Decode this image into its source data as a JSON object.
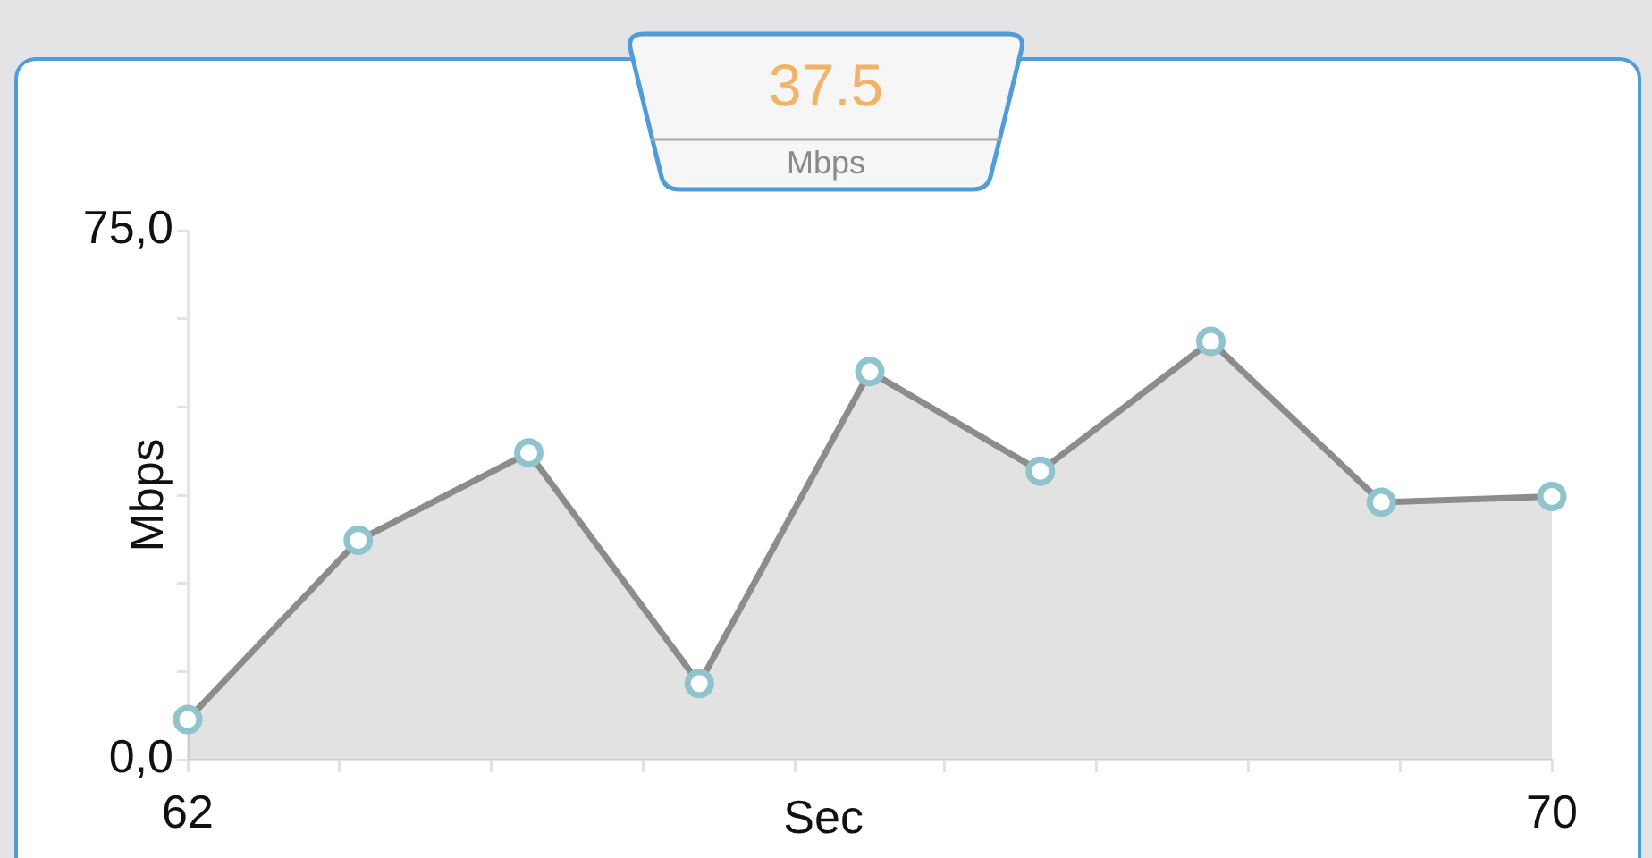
{
  "chart_data": {
    "type": "area",
    "title": "37.5",
    "subtitle": "Mbps",
    "xlabel": "Sec",
    "ylabel": "Mbps",
    "x": [
      62,
      63,
      64,
      65,
      66,
      67,
      68,
      69,
      70
    ],
    "series": [
      {
        "color": "#8c8c8c",
        "values": [
          5.7,
          31.1,
          43.5,
          10.8,
          55.0,
          40.9,
          59.3,
          36.5,
          37.3
        ]
      }
    ],
    "xlim": [
      62,
      70
    ],
    "xticks": [
      62,
      {
        "value": 62.89,
        "label": null
      },
      {
        "value": 63.78,
        "label": null
      },
      {
        "value": 64.67,
        "label": null
      },
      {
        "value": 65.56,
        "label": null
      },
      {
        "value": 66.44,
        "label": null
      },
      {
        "value": 67.33,
        "label": null
      },
      {
        "value": 68.22,
        "label": null
      },
      {
        "value": 69.11,
        "label": null
      },
      70
    ],
    "ylim": [
      0,
      75
    ],
    "yticks": [
      {
        "value": 0,
        "label": "0,0"
      },
      {
        "value": 12.5,
        "label": null
      },
      {
        "value": 25,
        "label": null
      },
      {
        "value": 37.5,
        "label": null
      },
      {
        "value": 50,
        "label": null
      },
      {
        "value": 62.5,
        "label": null
      },
      {
        "value": 75,
        "label": "75,0"
      }
    ],
    "grid": false,
    "legend": false,
    "marker": "circle",
    "line_style": "solid"
  }
}
